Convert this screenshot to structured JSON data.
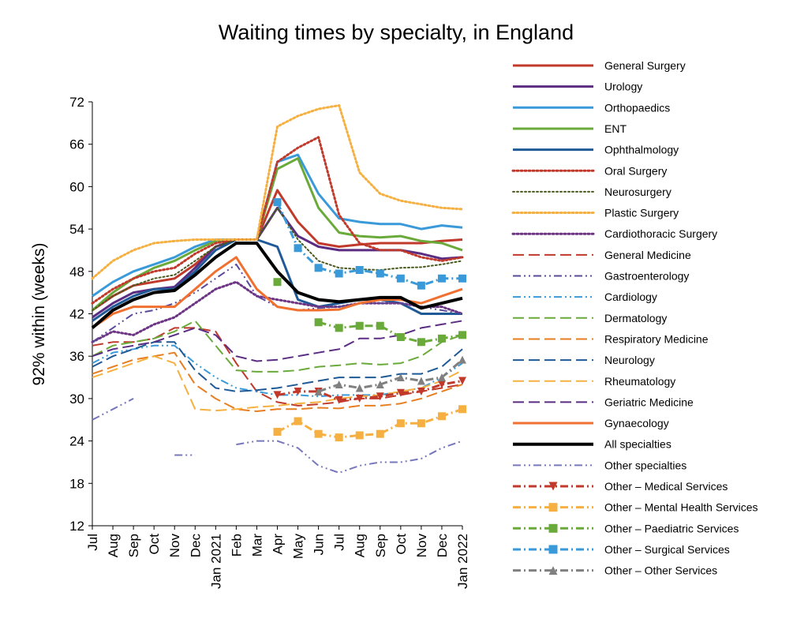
{
  "chart_data": {
    "type": "line",
    "title": "Waiting times by specialty, in England",
    "ylabel": "92% within (weeks)",
    "xlabel": "",
    "ylim": [
      12,
      72
    ],
    "yticks": [
      12,
      18,
      24,
      30,
      36,
      42,
      48,
      54,
      60,
      66,
      72
    ],
    "categories": [
      "Jul",
      "Aug",
      "Sep",
      "Oct",
      "Nov",
      "Dec",
      "Jan 2021",
      "Feb",
      "Mar",
      "Apr",
      "May",
      "Jun",
      "Jul",
      "Aug",
      "Sep",
      "Oct",
      "Nov",
      "Dec",
      "Jan 2022"
    ],
    "grid": false,
    "legend_position": "right",
    "series": [
      {
        "name": "General Surgery",
        "color": "#c0392b",
        "style": "solid",
        "width": 3,
        "values": [
          42.5,
          44.5,
          46,
          46.5,
          47,
          49,
          51.5,
          52.5,
          52.5,
          59.5,
          55,
          52,
          51.5,
          51.8,
          52,
          52,
          52,
          52.3,
          52.5
        ]
      },
      {
        "name": "Urology",
        "color": "#5b2d82",
        "style": "solid",
        "width": 3,
        "values": [
          41.5,
          43.5,
          45,
          45.5,
          45.8,
          48.5,
          51.5,
          52.5,
          52.5,
          57,
          53,
          51.5,
          51,
          51,
          51,
          51,
          50.5,
          49.8,
          50
        ]
      },
      {
        "name": "Orthopaedics",
        "color": "#3a9ad9",
        "style": "solid",
        "width": 3,
        "values": [
          44.5,
          46.5,
          48,
          49,
          50,
          51.5,
          52.5,
          52.5,
          52.5,
          63.5,
          64.5,
          59,
          55.5,
          55,
          54.7,
          54.7,
          54,
          54.5,
          54.2
        ]
      },
      {
        "name": "ENT",
        "color": "#6aaa3a",
        "style": "solid",
        "width": 3,
        "values": [
          42.5,
          45,
          47,
          48.5,
          49.5,
          51,
          52.3,
          52.5,
          52.5,
          62.5,
          64,
          57,
          53.5,
          53,
          52.8,
          53,
          52.3,
          52,
          51
        ]
      },
      {
        "name": "Ophthalmology",
        "color": "#1f5a96",
        "style": "solid",
        "width": 3,
        "values": [
          41,
          43,
          44.5,
          45.5,
          45.5,
          48,
          51,
          52.5,
          52.5,
          51.5,
          44,
          43,
          43.5,
          44,
          44,
          43.5,
          42,
          42,
          42
        ]
      },
      {
        "name": "Oral Surgery",
        "color": "#c0392b",
        "style": "dot",
        "width": 3,
        "values": [
          43.5,
          45.5,
          47,
          48,
          48.5,
          50.5,
          52,
          52.5,
          52.5,
          63.5,
          65.5,
          67,
          56,
          52,
          51,
          51,
          50,
          49.5,
          50
        ]
      },
      {
        "name": "Neurosurgery",
        "color": "#4a5a1e",
        "style": "dot",
        "width": 2,
        "values": [
          42.5,
          44.5,
          46,
          47,
          47.5,
          49.5,
          51.5,
          52.5,
          52.5,
          57,
          52.5,
          49.5,
          48.5,
          48.3,
          48.2,
          48.5,
          48.6,
          49,
          49.5
        ]
      },
      {
        "name": "Plastic Surgery",
        "color": "#f5b041",
        "style": "dot",
        "width": 3,
        "values": [
          47,
          49.5,
          51,
          52,
          52.3,
          52.5,
          52.5,
          52.5,
          52.5,
          68.5,
          70,
          71,
          71.5,
          62,
          59,
          58,
          57.5,
          57,
          56.8
        ]
      },
      {
        "name": "Cardiothoracic Surgery",
        "color": "#6c3483",
        "style": "dot",
        "width": 3,
        "values": [
          38,
          39.5,
          39,
          40.5,
          41.5,
          43.5,
          45.5,
          46.5,
          44.5,
          44,
          43.5,
          43,
          43,
          43.5,
          43.5,
          43.5,
          43,
          43,
          42
        ]
      },
      {
        "name": "General Medicine",
        "color": "#c0392b",
        "style": "longdash",
        "width": 2,
        "values": [
          37.5,
          38,
          38,
          38.5,
          40,
          40,
          39.5,
          35,
          31,
          29.5,
          29,
          29.2,
          29.5,
          30,
          30,
          30.5,
          31,
          31.5,
          32
        ]
      },
      {
        "name": "Gastroenterology",
        "color": "#5b4a9a",
        "style": "dashdotdot",
        "width": 2,
        "values": [
          38,
          40,
          42,
          42.5,
          43.5,
          45,
          47,
          49,
          44.5,
          43,
          42.5,
          42.8,
          43,
          43.5,
          43.5,
          43.5,
          43,
          42.5,
          42
        ]
      },
      {
        "name": "Cardiology",
        "color": "#3a9ad9",
        "style": "dashdotdot",
        "width": 2,
        "values": [
          35,
          36.5,
          37,
          37.5,
          37.5,
          35,
          33,
          31.5,
          31,
          30.5,
          30.5,
          30.3,
          30.5,
          30.5,
          30.5,
          31,
          31.5,
          33,
          35
        ]
      },
      {
        "name": "Dermatology",
        "color": "#6aaa3a",
        "style": "longdash",
        "width": 2,
        "values": [
          36,
          37.5,
          38,
          38.5,
          39.5,
          41,
          37.5,
          34,
          33.8,
          33.8,
          34,
          34.5,
          34.7,
          35,
          34.8,
          35,
          36,
          38,
          39
        ]
      },
      {
        "name": "Respiratory Medicine",
        "color": "#e67e22",
        "style": "longdash",
        "width": 2,
        "values": [
          33.5,
          34.5,
          35.5,
          36,
          36.5,
          32,
          30,
          28.5,
          28.2,
          28.5,
          28.5,
          28.7,
          28.6,
          29,
          29,
          29.3,
          30,
          31,
          32
        ]
      },
      {
        "name": "Neurology",
        "color": "#1f5a96",
        "style": "longdash",
        "width": 2,
        "values": [
          34.5,
          36,
          37,
          38,
          38,
          34,
          31.5,
          31,
          31.2,
          31.5,
          32,
          32.5,
          33,
          33,
          33,
          33.5,
          33.5,
          34.5,
          37
        ]
      },
      {
        "name": "Rheumatology",
        "color": "#f5b041",
        "style": "longdash",
        "width": 2,
        "values": [
          33,
          34,
          35,
          36,
          35,
          28.5,
          28.3,
          28.5,
          28.8,
          29,
          29.3,
          29.5,
          30,
          30.3,
          30.5,
          31,
          31.5,
          32.5,
          34
        ]
      },
      {
        "name": "Geriatric Medicine",
        "color": "#5b2d82",
        "style": "longdash",
        "width": 2,
        "values": [
          36,
          37,
          37.5,
          38,
          39,
          40,
          39,
          36,
          35.3,
          35.5,
          36,
          36.5,
          37,
          38.5,
          38.5,
          39,
          40,
          40.5,
          41
        ]
      },
      {
        "name": "Gynaecology",
        "color": "#f07030",
        "style": "solid",
        "width": 3,
        "values": [
          40,
          42,
          43,
          43,
          43,
          45.5,
          48,
          50,
          45.5,
          43,
          42.5,
          42.5,
          42.6,
          43.5,
          44,
          44,
          43.5,
          44.5,
          45.5
        ]
      },
      {
        "name": "All specialties",
        "color": "#000000",
        "style": "solid",
        "width": 4,
        "values": [
          40,
          42.5,
          44,
          45,
          45.3,
          47.5,
          50,
          52,
          52,
          48,
          45,
          44,
          43.7,
          44,
          44.3,
          44.3,
          42.8,
          43.5,
          44.2
        ]
      },
      {
        "name": "Other specialties",
        "color": "#7777bb",
        "style": "dashdotdot",
        "width": 2,
        "values": [
          27,
          28.5,
          30,
          null,
          22,
          22,
          null,
          23.5,
          24,
          24,
          23,
          20.5,
          19.5,
          20.5,
          21,
          21,
          21.5,
          23,
          24
        ]
      },
      {
        "name": "Other – Medical Services",
        "color": "#c0392b",
        "style": "dashdot",
        "width": 3,
        "marker": "tri-down",
        "values": [
          null,
          null,
          null,
          null,
          null,
          null,
          null,
          null,
          null,
          30.5,
          31,
          31,
          29.8,
          30,
          30.3,
          30.8,
          31,
          32,
          32.5
        ]
      },
      {
        "name": "Other – Mental Health Services",
        "color": "#f5b041",
        "style": "dashdot",
        "width": 3,
        "marker": "square",
        "values": [
          null,
          null,
          null,
          null,
          null,
          null,
          null,
          null,
          null,
          25.3,
          26.8,
          25,
          24.5,
          24.8,
          25,
          26.5,
          26.5,
          27.5,
          28.5
        ]
      },
      {
        "name": "Other – Paediatric Services",
        "color": "#6aaa3a",
        "style": "dashdot",
        "width": 3,
        "marker": "square",
        "values": [
          null,
          null,
          null,
          null,
          null,
          null,
          null,
          null,
          null,
          46.5,
          null,
          40.8,
          40,
          40.3,
          40.3,
          38.7,
          38,
          38.5,
          39
        ]
      },
      {
        "name": "Other – Surgical Services",
        "color": "#3a9ad9",
        "style": "dashdot",
        "width": 3,
        "marker": "square",
        "values": [
          null,
          null,
          null,
          null,
          null,
          null,
          null,
          null,
          null,
          57.8,
          51.3,
          48.5,
          47.7,
          48.2,
          47.7,
          47,
          46,
          47,
          47
        ]
      },
      {
        "name": "Other – Other Services",
        "color": "#808080",
        "style": "dashdot",
        "width": 3,
        "marker": "triangle",
        "values": [
          null,
          null,
          null,
          null,
          null,
          null,
          null,
          null,
          null,
          null,
          null,
          31,
          32,
          31.5,
          32,
          33,
          32.5,
          33,
          35.5
        ]
      }
    ]
  }
}
